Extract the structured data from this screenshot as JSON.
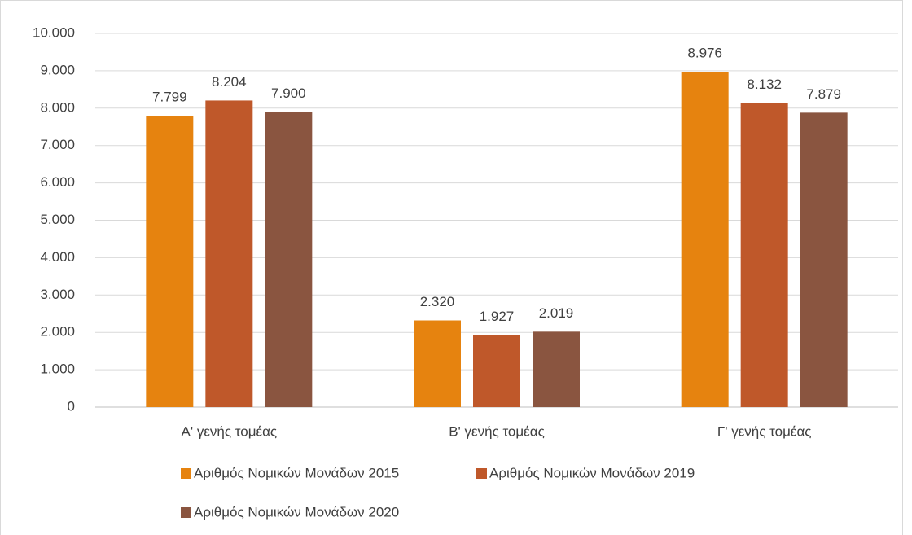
{
  "chart_data": {
    "type": "bar",
    "categories": [
      "Α' γενής τομέας",
      "Β' γενής τομέας",
      "Γ' γενής τομέας"
    ],
    "series": [
      {
        "name": "Αριθμός Νομικών Μονάδων 2015",
        "color": "#e6830f",
        "values": [
          7799,
          2320,
          8976
        ],
        "value_labels": [
          "7.799",
          "2.320",
          "8.976"
        ]
      },
      {
        "name": "Αριθμός Νομικών Μονάδων 2019",
        "color": "#bf582a",
        "values": [
          8204,
          1927,
          8132
        ],
        "value_labels": [
          "8.204",
          "1.927",
          "8.132"
        ]
      },
      {
        "name": "Αριθμός Νομικών Μονάδων 2020",
        "color": "#8a5540",
        "values": [
          7900,
          2019,
          7879
        ],
        "value_labels": [
          "7.900",
          "2.019",
          "7.879"
        ]
      }
    ],
    "ylim": [
      0,
      10000
    ],
    "yticks": [
      0,
      {
        "value": 1000,
        "label": "1.000"
      },
      {
        "value": 2000,
        "label": "2.000"
      },
      {
        "value": 3000,
        "label": "3.000"
      },
      {
        "value": 4000,
        "label": "4.000"
      },
      {
        "value": 5000,
        "label": "5.000"
      },
      {
        "value": 6000,
        "label": "6.000"
      },
      {
        "value": 7000,
        "label": "7.000"
      },
      {
        "value": 8000,
        "label": "8.000"
      },
      {
        "value": 9000,
        "label": "9.000"
      },
      {
        "value": 10000,
        "label": "10.000"
      }
    ],
    "grid": true,
    "legend": "bottom"
  }
}
